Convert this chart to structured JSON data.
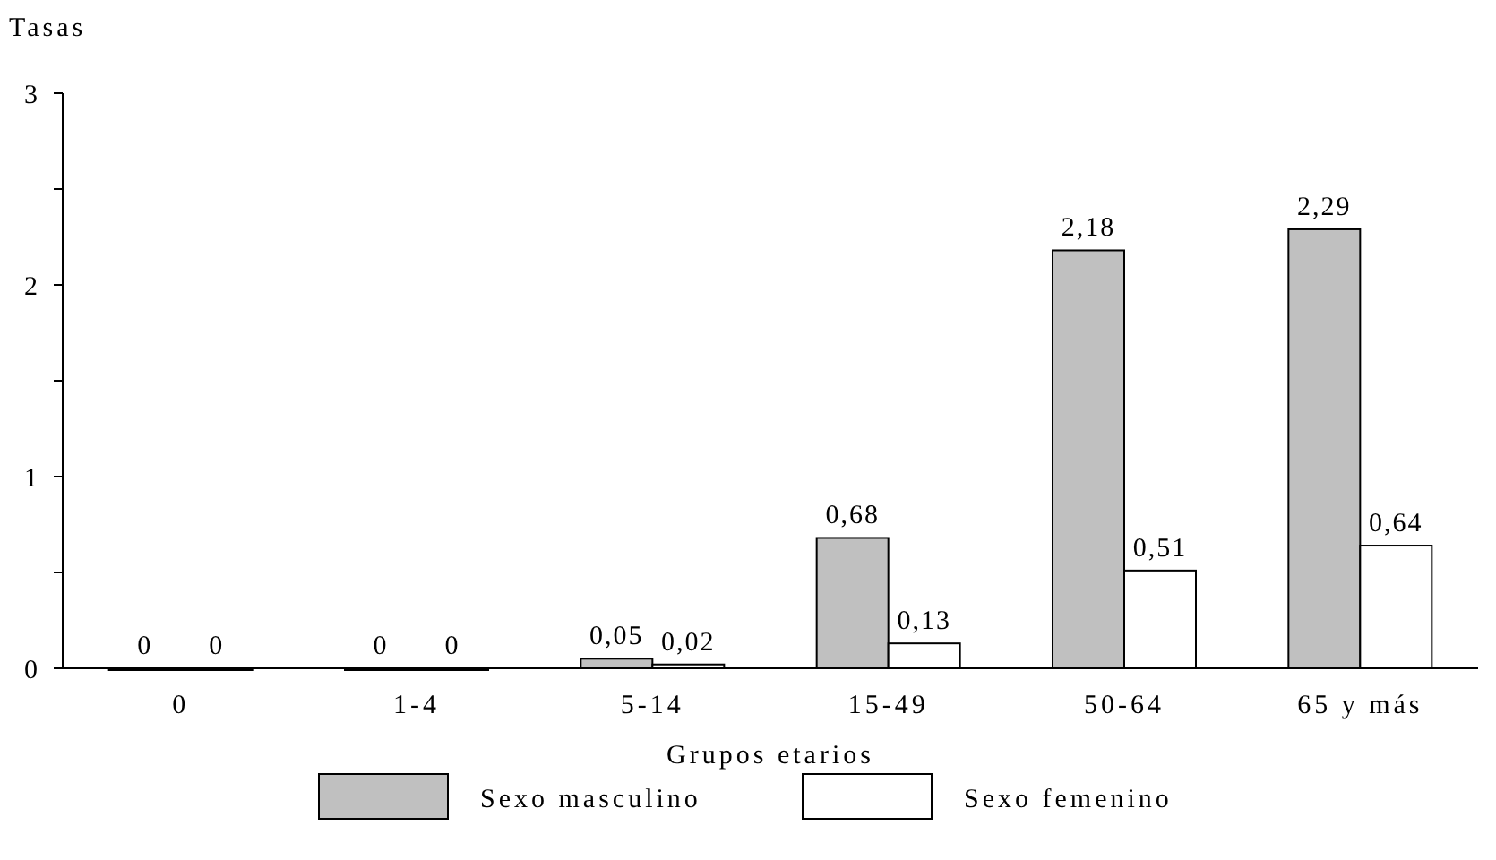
{
  "chart_data": {
    "type": "bar",
    "xlabel": "Grupos etarios",
    "ylabel": "Tasas",
    "categories": [
      "0",
      "1-4",
      "5-14",
      "15-49",
      "50-64",
      "65 y más"
    ],
    "series": [
      {
        "name": "Sexo masculino",
        "color": "#c0c0c0",
        "values": [
          0,
          0,
          0.05,
          0.68,
          2.18,
          2.29
        ],
        "value_labels": [
          "0",
          "0",
          "0,05",
          "0,68",
          "2,18",
          "2,29"
        ]
      },
      {
        "name": "Sexo femenino",
        "color": "#ffffff",
        "values": [
          0,
          0,
          0.02,
          0.13,
          0.51,
          0.64
        ],
        "value_labels": [
          "0",
          "0",
          "0,02",
          "0,13",
          "0,51",
          "0,64"
        ]
      }
    ],
    "ylim": [
      0,
      3
    ],
    "yticks": [
      0,
      {
        "value": 0.5,
        "label": null
      },
      1,
      {
        "value": 1.5,
        "label": null
      },
      2,
      {
        "value": 2.5,
        "label": null
      },
      3
    ],
    "grid": false,
    "legend": "bottom"
  }
}
